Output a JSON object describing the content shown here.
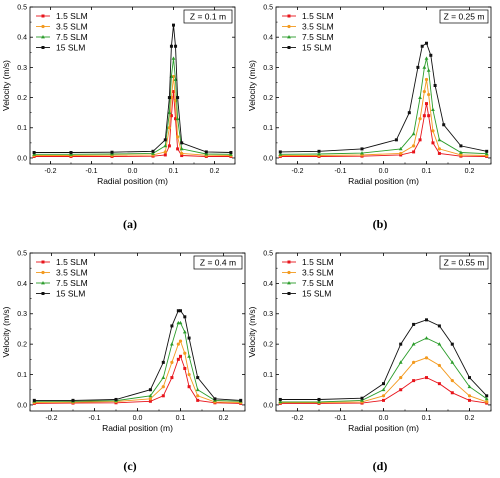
{
  "series_colors": [
    "#e8141b",
    "#f39a1f",
    "#2a9c2a",
    "#111111"
  ],
  "chart_data": [
    {
      "type": "line",
      "caption": "(a)",
      "annotation": "Z = 0.1 m",
      "xlabel": "Radial position (m)",
      "ylabel": "Velocity (m/s)",
      "xlim": [
        -0.25,
        0.25
      ],
      "ylim": [
        -0.02,
        0.5
      ],
      "xticks": [
        "-0.2",
        "-0.1",
        "0.0",
        "0.1",
        "0.2"
      ],
      "yticks": [
        "0.0",
        "0.1",
        "0.2",
        "0.3",
        "0.4",
        "0.5"
      ],
      "legend_position": "top-left",
      "series": [
        {
          "name": "1.5 SLM",
          "values": [
            [
              -0.24,
              0.005
            ],
            [
              -0.15,
              0.005
            ],
            [
              -0.05,
              0.005
            ],
            [
              0.05,
              0.006
            ],
            [
              0.08,
              0.01
            ],
            [
              0.09,
              0.04
            ],
            [
              0.095,
              0.14
            ],
            [
              0.1,
              0.22
            ],
            [
              0.105,
              0.13
            ],
            [
              0.11,
              0.03
            ],
            [
              0.12,
              0.008
            ],
            [
              0.18,
              0.005
            ],
            [
              0.24,
              0.005
            ]
          ]
        },
        {
          "name": "3.5 SLM",
          "values": [
            [
              -0.24,
              0.008
            ],
            [
              -0.15,
              0.008
            ],
            [
              -0.05,
              0.009
            ],
            [
              0.05,
              0.01
            ],
            [
              0.08,
              0.02
            ],
            [
              0.09,
              0.1
            ],
            [
              0.095,
              0.2
            ],
            [
              0.1,
              0.27
            ],
            [
              0.105,
              0.19
            ],
            [
              0.11,
              0.07
            ],
            [
              0.12,
              0.015
            ],
            [
              0.18,
              0.009
            ],
            [
              0.24,
              0.008
            ]
          ]
        },
        {
          "name": "7.5 SLM",
          "values": [
            [
              -0.24,
              0.012
            ],
            [
              -0.15,
              0.012
            ],
            [
              -0.05,
              0.013
            ],
            [
              0.05,
              0.015
            ],
            [
              0.08,
              0.04
            ],
            [
              0.09,
              0.15
            ],
            [
              0.095,
              0.27
            ],
            [
              0.1,
              0.33
            ],
            [
              0.105,
              0.26
            ],
            [
              0.11,
              0.13
            ],
            [
              0.12,
              0.03
            ],
            [
              0.18,
              0.013
            ],
            [
              0.24,
              0.012
            ]
          ]
        },
        {
          "name": "15  SLM",
          "values": [
            [
              -0.24,
              0.018
            ],
            [
              -0.15,
              0.018
            ],
            [
              -0.05,
              0.019
            ],
            [
              0.05,
              0.022
            ],
            [
              0.08,
              0.06
            ],
            [
              0.09,
              0.2
            ],
            [
              0.095,
              0.37
            ],
            [
              0.1,
              0.44
            ],
            [
              0.105,
              0.37
            ],
            [
              0.11,
              0.2
            ],
            [
              0.12,
              0.05
            ],
            [
              0.18,
              0.02
            ],
            [
              0.24,
              0.018
            ]
          ]
        }
      ]
    },
    {
      "type": "line",
      "caption": "(b)",
      "annotation": "Z = 0.25 m",
      "xlabel": "Radial position (m)",
      "ylabel": "Velocity (m/s)",
      "xlim": [
        -0.25,
        0.25
      ],
      "ylim": [
        -0.02,
        0.5
      ],
      "xticks": [
        "-0.2",
        "-0.1",
        "0.0",
        "0.1",
        "0.2"
      ],
      "yticks": [
        "0.0",
        "0.1",
        "0.2",
        "0.3",
        "0.4",
        "0.5"
      ],
      "legend_position": "top-left",
      "series": [
        {
          "name": "1.5 SLM",
          "values": [
            [
              -0.24,
              0.005
            ],
            [
              -0.15,
              0.005
            ],
            [
              -0.05,
              0.006
            ],
            [
              0.04,
              0.01
            ],
            [
              0.07,
              0.02
            ],
            [
              0.085,
              0.06
            ],
            [
              0.095,
              0.14
            ],
            [
              0.1,
              0.18
            ],
            [
              0.105,
              0.14
            ],
            [
              0.115,
              0.05
            ],
            [
              0.13,
              0.015
            ],
            [
              0.18,
              0.006
            ],
            [
              0.24,
              0.005
            ]
          ]
        },
        {
          "name": "3.5 SLM",
          "values": [
            [
              -0.24,
              0.008
            ],
            [
              -0.15,
              0.008
            ],
            [
              -0.05,
              0.01
            ],
            [
              0.04,
              0.015
            ],
            [
              0.07,
              0.04
            ],
            [
              0.085,
              0.13
            ],
            [
              0.095,
              0.22
            ],
            [
              0.1,
              0.26
            ],
            [
              0.105,
              0.21
            ],
            [
              0.115,
              0.09
            ],
            [
              0.13,
              0.03
            ],
            [
              0.18,
              0.01
            ],
            [
              0.24,
              0.008
            ]
          ]
        },
        {
          "name": "7.5 SLM",
          "values": [
            [
              -0.24,
              0.012
            ],
            [
              -0.15,
              0.013
            ],
            [
              -0.05,
              0.016
            ],
            [
              0.04,
              0.03
            ],
            [
              0.07,
              0.08
            ],
            [
              0.085,
              0.2
            ],
            [
              0.095,
              0.3
            ],
            [
              0.1,
              0.33
            ],
            [
              0.105,
              0.29
            ],
            [
              0.115,
              0.16
            ],
            [
              0.13,
              0.06
            ],
            [
              0.18,
              0.018
            ],
            [
              0.24,
              0.014
            ]
          ]
        },
        {
          "name": "15  SLM",
          "values": [
            [
              -0.24,
              0.02
            ],
            [
              -0.15,
              0.022
            ],
            [
              -0.05,
              0.03
            ],
            [
              0.03,
              0.06
            ],
            [
              0.06,
              0.15
            ],
            [
              0.08,
              0.3
            ],
            [
              0.09,
              0.37
            ],
            [
              0.1,
              0.38
            ],
            [
              0.11,
              0.34
            ],
            [
              0.12,
              0.24
            ],
            [
              0.14,
              0.11
            ],
            [
              0.18,
              0.04
            ],
            [
              0.24,
              0.022
            ]
          ]
        }
      ]
    },
    {
      "type": "line",
      "caption": "(c)",
      "annotation": "Z = 0.4 m",
      "xlabel": "Radial position (m)",
      "ylabel": "Velocity (m/s)",
      "xlim": [
        -0.25,
        0.25
      ],
      "ylim": [
        -0.02,
        0.5
      ],
      "xticks": [
        "-0.2",
        "-0.1",
        "0.0",
        "0.1",
        "0.2"
      ],
      "yticks": [
        "0.0",
        "0.1",
        "0.2",
        "0.3",
        "0.4",
        "0.5"
      ],
      "legend_position": "top-left",
      "series": [
        {
          "name": "1.5 SLM",
          "values": [
            [
              -0.24,
              0.005
            ],
            [
              -0.15,
              0.006
            ],
            [
              -0.05,
              0.007
            ],
            [
              0.03,
              0.012
            ],
            [
              0.06,
              0.03
            ],
            [
              0.08,
              0.09
            ],
            [
              0.095,
              0.15
            ],
            [
              0.1,
              0.16
            ],
            [
              0.11,
              0.12
            ],
            [
              0.12,
              0.06
            ],
            [
              0.14,
              0.015
            ],
            [
              0.18,
              0.007
            ],
            [
              0.24,
              0.005
            ]
          ]
        },
        {
          "name": "3.5 SLM",
          "values": [
            [
              -0.24,
              0.008
            ],
            [
              -0.15,
              0.009
            ],
            [
              -0.05,
              0.011
            ],
            [
              0.03,
              0.02
            ],
            [
              0.06,
              0.06
            ],
            [
              0.08,
              0.14
            ],
            [
              0.095,
              0.2
            ],
            [
              0.1,
              0.21
            ],
            [
              0.11,
              0.17
            ],
            [
              0.12,
              0.1
            ],
            [
              0.14,
              0.03
            ],
            [
              0.18,
              0.01
            ],
            [
              0.24,
              0.008
            ]
          ]
        },
        {
          "name": "7.5 SLM",
          "values": [
            [
              -0.24,
              0.012
            ],
            [
              -0.15,
              0.012
            ],
            [
              -0.05,
              0.014
            ],
            [
              0.03,
              0.03
            ],
            [
              0.06,
              0.09
            ],
            [
              0.08,
              0.2
            ],
            [
              0.095,
              0.27
            ],
            [
              0.1,
              0.27
            ],
            [
              0.11,
              0.24
            ],
            [
              0.12,
              0.16
            ],
            [
              0.14,
              0.05
            ],
            [
              0.18,
              0.015
            ],
            [
              0.24,
              0.012
            ]
          ]
        },
        {
          "name": "15  SLM",
          "values": [
            [
              -0.24,
              0.015
            ],
            [
              -0.15,
              0.015
            ],
            [
              -0.05,
              0.018
            ],
            [
              0.03,
              0.05
            ],
            [
              0.06,
              0.14
            ],
            [
              0.08,
              0.26
            ],
            [
              0.095,
              0.31
            ],
            [
              0.1,
              0.31
            ],
            [
              0.11,
              0.29
            ],
            [
              0.12,
              0.22
            ],
            [
              0.14,
              0.09
            ],
            [
              0.18,
              0.02
            ],
            [
              0.24,
              0.015
            ]
          ]
        }
      ]
    },
    {
      "type": "line",
      "caption": "(d)",
      "annotation": "Z = 0.55 m",
      "xlabel": "Radial position (m)",
      "ylabel": "Velocity (m/s)",
      "xlim": [
        -0.25,
        0.25
      ],
      "ylim": [
        -0.02,
        0.5
      ],
      "xticks": [
        "-0.2",
        "-0.1",
        "0.0",
        "0.1",
        "0.2"
      ],
      "yticks": [
        "0.0",
        "0.1",
        "0.2",
        "0.3",
        "0.4",
        "0.5"
      ],
      "legend_position": "top-left",
      "series": [
        {
          "name": "1.5 SLM",
          "values": [
            [
              -0.24,
              0.005
            ],
            [
              -0.15,
              0.005
            ],
            [
              -0.05,
              0.006
            ],
            [
              0.0,
              0.015
            ],
            [
              0.04,
              0.05
            ],
            [
              0.07,
              0.08
            ],
            [
              0.1,
              0.09
            ],
            [
              0.13,
              0.07
            ],
            [
              0.16,
              0.04
            ],
            [
              0.2,
              0.015
            ],
            [
              0.24,
              0.006
            ]
          ]
        },
        {
          "name": "3.5 SLM",
          "values": [
            [
              -0.24,
              0.008
            ],
            [
              -0.15,
              0.008
            ],
            [
              -0.05,
              0.01
            ],
            [
              0.0,
              0.03
            ],
            [
              0.04,
              0.09
            ],
            [
              0.07,
              0.14
            ],
            [
              0.1,
              0.155
            ],
            [
              0.13,
              0.13
            ],
            [
              0.16,
              0.08
            ],
            [
              0.2,
              0.03
            ],
            [
              0.24,
              0.01
            ]
          ]
        },
        {
          "name": "7.5 SLM",
          "values": [
            [
              -0.24,
              0.01
            ],
            [
              -0.15,
              0.01
            ],
            [
              -0.05,
              0.015
            ],
            [
              0.0,
              0.05
            ],
            [
              0.04,
              0.14
            ],
            [
              0.07,
              0.2
            ],
            [
              0.1,
              0.22
            ],
            [
              0.13,
              0.2
            ],
            [
              0.16,
              0.14
            ],
            [
              0.2,
              0.06
            ],
            [
              0.24,
              0.02
            ]
          ]
        },
        {
          "name": "15  SLM",
          "values": [
            [
              -0.24,
              0.018
            ],
            [
              -0.15,
              0.018
            ],
            [
              -0.05,
              0.022
            ],
            [
              0.0,
              0.07
            ],
            [
              0.04,
              0.2
            ],
            [
              0.07,
              0.265
            ],
            [
              0.1,
              0.28
            ],
            [
              0.13,
              0.26
            ],
            [
              0.16,
              0.2
            ],
            [
              0.2,
              0.09
            ],
            [
              0.24,
              0.03
            ]
          ]
        }
      ]
    }
  ]
}
